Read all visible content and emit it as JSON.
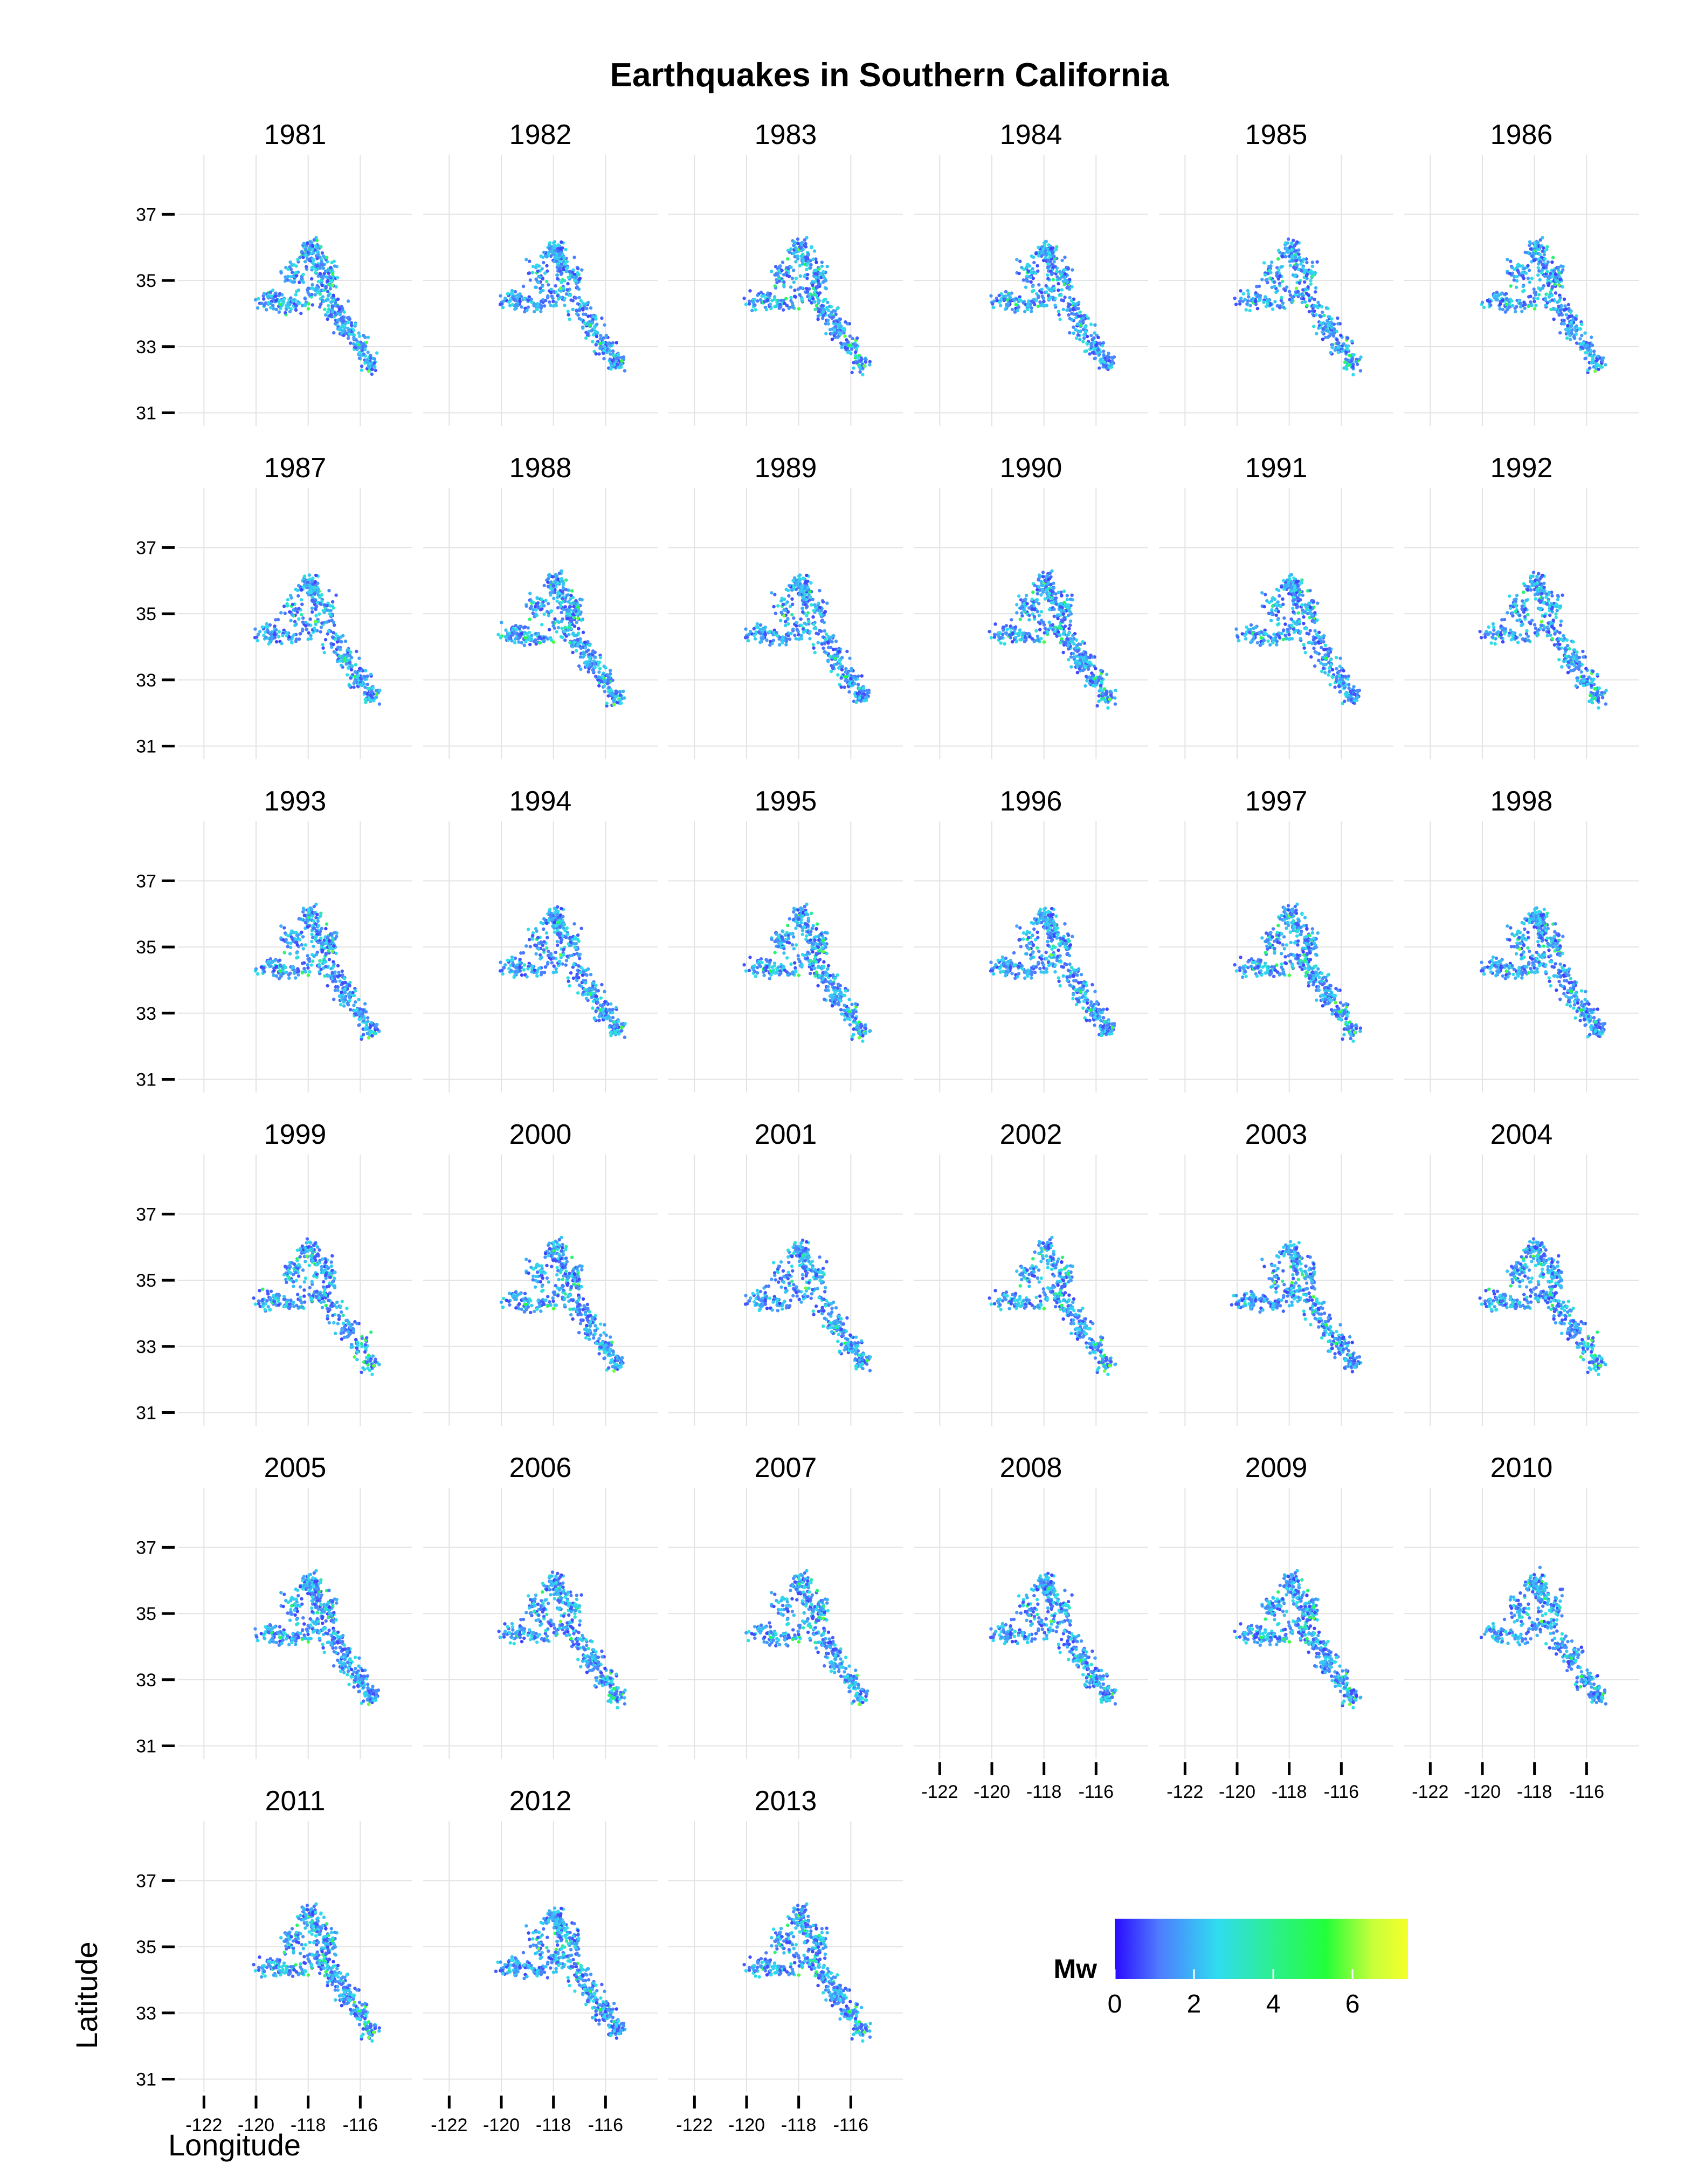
{
  "chart_data": {
    "type": "scatter",
    "title": "Earthquakes in Southern California",
    "xlabel": "Longitude",
    "ylabel": "Latitude",
    "xlim": [
      -123,
      -114
    ],
    "ylim": [
      30.6,
      38.8
    ],
    "x_ticks": [
      -122,
      -120,
      -118,
      -116
    ],
    "x_tick_labels": [
      "-122",
      "-120",
      "-118",
      "-116"
    ],
    "y_ticks": [
      31,
      33,
      35,
      37
    ],
    "y_tick_labels": [
      "31",
      "33",
      "35",
      "37"
    ],
    "grid": true,
    "facet_by": "year",
    "facets": [
      "1981",
      "1982",
      "1983",
      "1984",
      "1985",
      "1986",
      "1987",
      "1988",
      "1989",
      "1990",
      "1991",
      "1992",
      "1993",
      "1994",
      "1995",
      "1996",
      "1997",
      "1998",
      "1999",
      "2000",
      "2001",
      "2002",
      "2003",
      "2004",
      "2005",
      "2006",
      "2007",
      "2008",
      "2009",
      "2010",
      "2011",
      "2012",
      "2013"
    ],
    "layout": {
      "columns": 6,
      "rows": 6
    },
    "color_scale": {
      "title": "Mw",
      "range": [
        0,
        7.4
      ],
      "ticks": [
        0,
        2,
        4,
        6
      ],
      "tick_labels": [
        "0",
        "2",
        "4",
        "6"
      ],
      "colors": [
        "#2a0bff",
        "#4f7bff",
        "#2fdcf0",
        "#2cf088",
        "#22ff3a",
        "#c8ff3a",
        "#f5ff2a"
      ]
    },
    "legend_position": "bottom-right",
    "representative_points": [
      {
        "lon": -118.0,
        "lat": 35.9,
        "mw": 1.4
      },
      {
        "lon": -117.5,
        "lat": 34.2,
        "mw": 1.8
      },
      {
        "lon": -116.6,
        "lat": 33.6,
        "mw": 1.2
      },
      {
        "lon": -116.0,
        "lat": 32.7,
        "mw": 1.6
      },
      {
        "lon": -118.5,
        "lat": 34.3,
        "mw": 2.3
      },
      {
        "lon": -119.6,
        "lat": 34.4,
        "mw": 2.6
      },
      {
        "lon": -115.7,
        "lat": 32.4,
        "mw": 2.9
      }
    ]
  }
}
